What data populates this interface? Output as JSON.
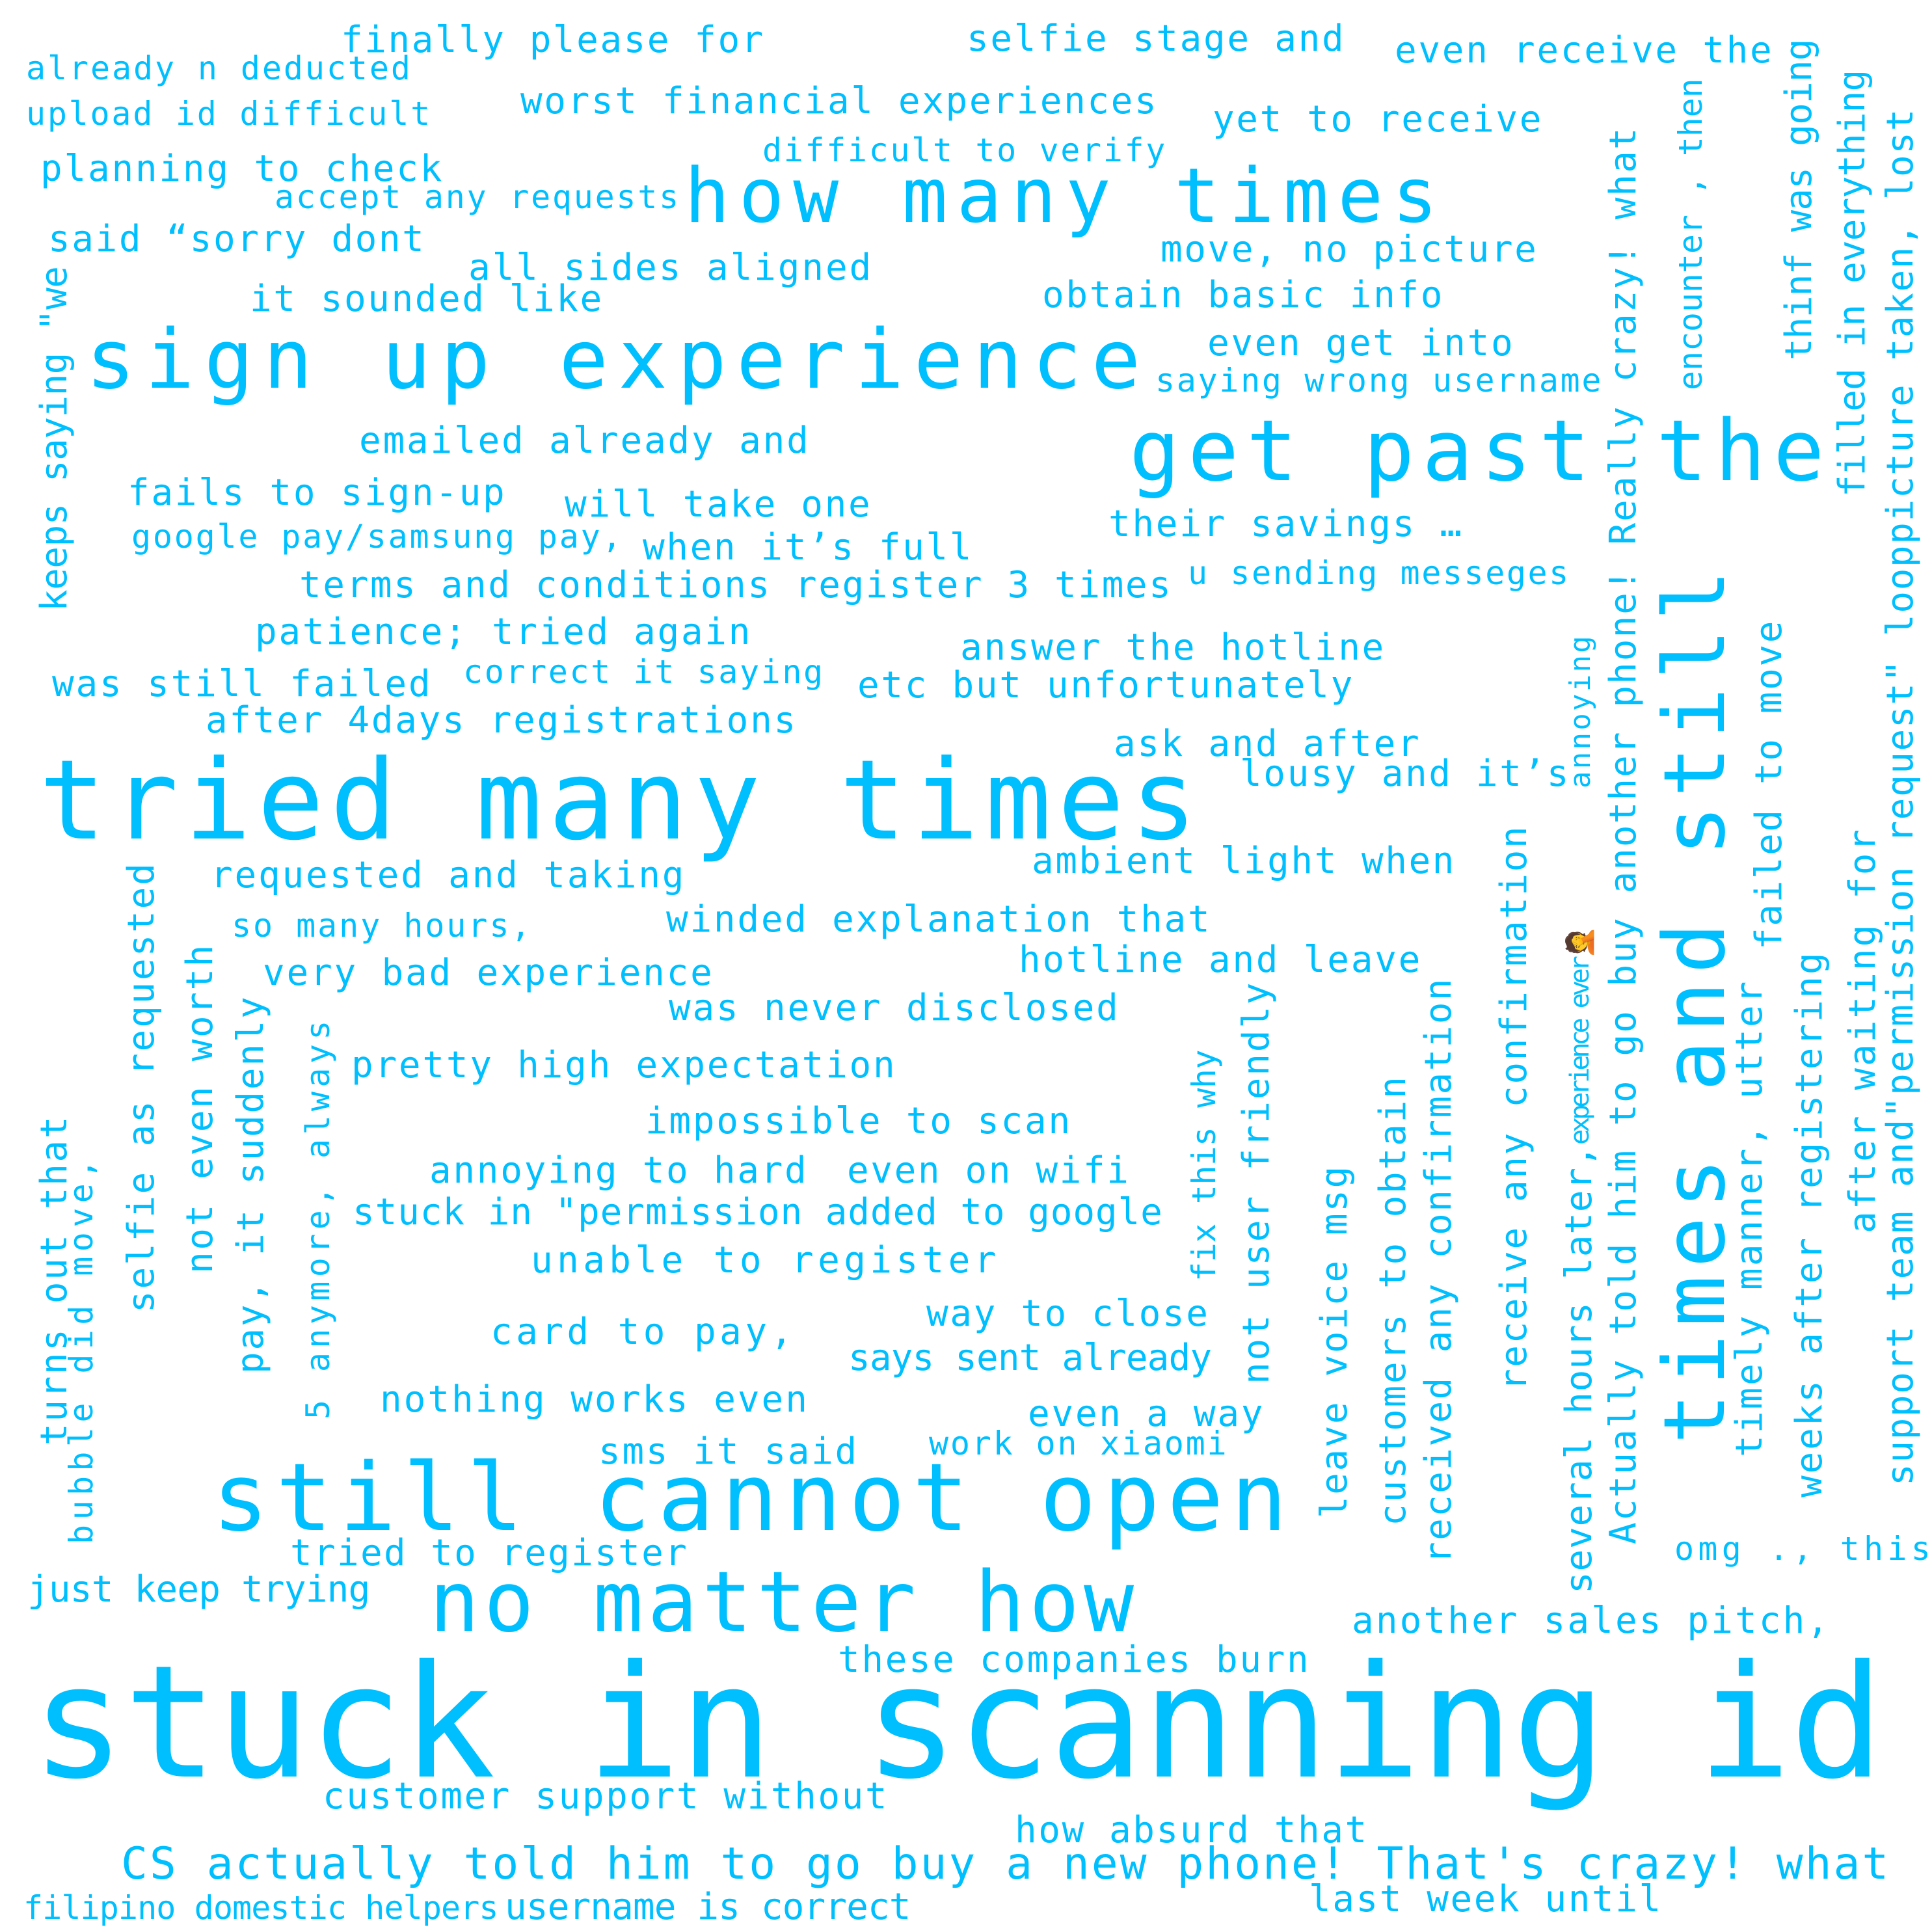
{
  "style": {
    "word_color": "#00BFFF",
    "background": "#FFFFFF"
  },
  "words": {
    "finally_please_for": "finally please for",
    "selfie_stage_and": "selfie stage and",
    "even_receive_the": "even receive the",
    "already_n_deducted": "already n deducted",
    "upload_id_difficult": "upload id difficult",
    "worst_financial_experiences": "worst financial experiences",
    "yet_to_receive": "yet to receive",
    "planning_to_check": "planning to check",
    "difficult_to_verify": "difficult to verify",
    "accept_any_requests": "accept any requests",
    "how_many_times": "how many times",
    "said_sorry_dont": "said “sorry dont",
    "move_no_picture": "move, no picture",
    "all_sides_aligned": "all sides aligned",
    "it_sounded_like": "it sounded like",
    "obtain_basic_info": "obtain basic info",
    "sign_up_experience": "sign up experience",
    "even_get_into": "even get into",
    "saying_wrong_username": "saying wrong username",
    "get_past_the": "get past the",
    "emailed_already_and": "emailed already and",
    "fails_to_sign_up": "fails to sign-up",
    "will_take_one": "will take one",
    "their_savings": "their savings …",
    "google_pay_samsung_pay": "google pay/samsung pay,",
    "when_its_full": "when it’s full",
    "terms_and_conditions": "terms and conditions register 3 times",
    "u_sending_messeges": "u sending messeges",
    "patience_tried_again": "patience; tried again",
    "answer_the_hotline": "answer the hotline",
    "was_still_failed": "was still failed",
    "correct_it_saying": "correct it saying",
    "etc_but_unfortunately": "etc but unfortunately",
    "after_4days_registrations": "after 4days registrations",
    "ask_and_after": "ask and after",
    "tried_many_times": "tried many times",
    "lousy_and_its": "lousy and it’s",
    "ambient_light_when": "ambient light when",
    "requested_and_taking": "requested and taking",
    "winded_explanation_that": "winded explanation that",
    "so_many_hours": "so many hours,",
    "hotline_and_leave": "hotline and leave",
    "very_bad_experience": "very bad experience",
    "was_never_disclosed": "was never disclosed",
    "pretty_high_expectation": "pretty high expectation",
    "impossible_to_scan": "impossible to scan",
    "annoying_to_hard": "annoying to hard",
    "even_on_wifi": "even on wifi",
    "stuck_in_permission": "stuck in \"permission added to google",
    "unable_to_register": "unable to register",
    "way_to_close": "way to close",
    "card_to_pay": "card to pay,",
    "says_sent_already": "says sent already",
    "nothing_works_even": "nothing works even",
    "even_a_way": "even a way",
    "sms_it_said": "sms it said",
    "work_on_xiaomi": "work on xiaomi",
    "still_cannot_open": "still cannot open",
    "tried_to_register": "tried to register",
    "just_keep_trying": "just keep trying",
    "no_matter_how": "no matter how",
    "another_sales_pitch": "another sales pitch,",
    "omg_this": "omg ., this",
    "these_companies_burn": "these companies burn",
    "stuck_in_scanning_id": "stuck in scanning id",
    "customer_support_without": "customer support without",
    "how_absurd_that": "how absurd that",
    "cs_actually_told": "CS actually told him to go buy a new phone! That's crazy! what",
    "filipino_domestic_helpers": "filipino domestic helpers",
    "username_is_correct": "username is correct",
    "last_week_until": "last week until",
    "keeps_saying_we": "keeps saying \"we",
    "selfie_as_requested": "selfie as requested",
    "turns_out_that": "turns out that",
    "bubble_did_move": "bubble did move,",
    "not_even_worth": "not even worth",
    "pay_it_suddenly": "pay, it suddenly",
    "five_anymore_always": "5 anymore, always",
    "fix_this_why": "fix this why",
    "not_user_friendly": "not user friendly",
    "leave_voice_msg": "leave voice msg",
    "customers_to_obtain": "customers to obtain",
    "received_any_confirmation": "received any confirmation",
    "receive_any_confirmation": "receive any confirmation",
    "several_hours_later": "several hours later,",
    "experience_ever": "experience ever🤦",
    "annoying": "annoying",
    "times_and_still": "times and still",
    "actually_told_him": "Actually told him to go buy another phone! Really crazy! what",
    "encounter_then": "encounter , then",
    "timely_manner_utter": "timely manner, utter",
    "failed_to_move": "failed to move",
    "weeks_after_registering": "weeks after registering",
    "thinf_was_going": "thinf was going",
    "filled_in_everything": "filled in everything",
    "after_waiting_for": "after waiting for",
    "support_team_and": "support team and\"permission request\" looppicture taken, lost"
  }
}
